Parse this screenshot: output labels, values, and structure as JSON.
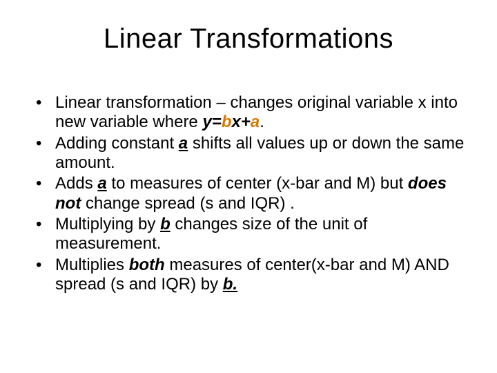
{
  "slide": {
    "title": "Linear Transformations",
    "title_fontsize": 40,
    "body_fontsize": 24,
    "background_color": "#ffffff",
    "text_color": "#000000",
    "accent_color": "#d97a00",
    "bullets": [
      {
        "segments": [
          {
            "text": "Linear transformation – changes original variable x into new variable  where "
          },
          {
            "text": "y=",
            "style": "bi"
          },
          {
            "text": "b",
            "style": "bi",
            "color": "accent"
          },
          {
            "text": "x+",
            "style": "bi"
          },
          {
            "text": "a",
            "style": "bi",
            "color": "accent"
          },
          {
            "text": "."
          }
        ]
      },
      {
        "segments": [
          {
            "text": "Adding constant "
          },
          {
            "text": "a",
            "style": "biu"
          },
          {
            "text": " shifts all values up or down the same amount."
          }
        ]
      },
      {
        "segments": [
          {
            "text": "Adds "
          },
          {
            "text": "a",
            "style": "biu"
          },
          {
            "text": " to measures of center (x-bar and M) but "
          },
          {
            "text": "does not",
            "style": "bi"
          },
          {
            "text": " change spread (s and IQR) ."
          }
        ]
      },
      {
        "segments": [
          {
            "text": "Multiplying by "
          },
          {
            "text": "b",
            "style": "biu"
          },
          {
            "text": " changes size of the unit of measurement."
          }
        ]
      },
      {
        "segments": [
          {
            "text": "Multiplies "
          },
          {
            "text": "both",
            "style": "bi"
          },
          {
            "text": " measures of center(x-bar and M) AND spread (s and IQR) by "
          },
          {
            "text": "b. ",
            "style": "biu"
          }
        ]
      }
    ]
  }
}
